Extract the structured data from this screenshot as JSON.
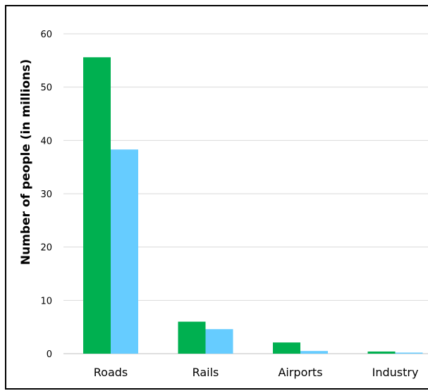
{
  "chart_data": {
    "type": "bar",
    "title": "",
    "xlabel": "",
    "ylabel": "Number of people (in millions)",
    "ylim": [
      0,
      60
    ],
    "yticks": [
      0,
      10,
      20,
      30,
      40,
      50,
      60
    ],
    "grid": true,
    "legend": "none",
    "categories": [
      "Roads",
      "Rails",
      "Airports",
      "Industry"
    ],
    "series": [
      {
        "color": "#00b050",
        "values": [
          55.6,
          6.0,
          2.1,
          0.4
        ]
      },
      {
        "color": "#66ccff",
        "values": [
          38.3,
          4.6,
          0.5,
          0.2
        ]
      }
    ]
  }
}
